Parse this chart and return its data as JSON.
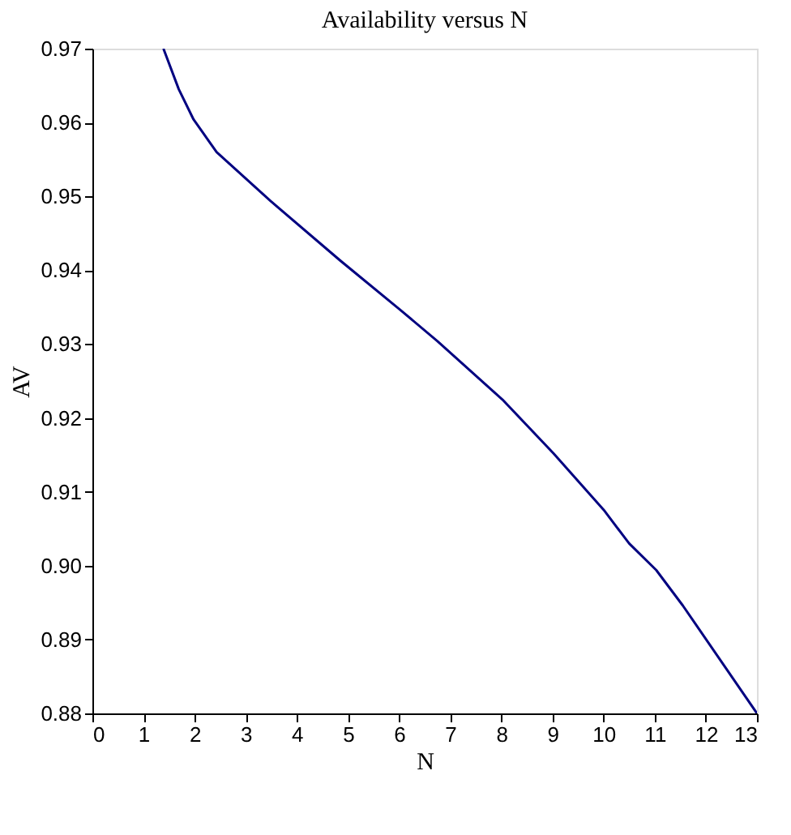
{
  "chart_data": {
    "type": "line",
    "title": "Availability  versus N",
    "xlabel": "N",
    "ylabel": "AV",
    "x": [
      1.39,
      1.69,
      1.98,
      2.43,
      3.48,
      4.85,
      6.01,
      6.75,
      8.02,
      9.02,
      10.02,
      10.5,
      11.03,
      11.55,
      13
    ],
    "series": [
      {
        "color": "#000080",
        "values": [
          0.97,
          0.9645,
          0.9604,
          0.956,
          0.9494,
          0.9413,
          0.9347,
          0.9304,
          0.9225,
          0.9152,
          0.9074,
          0.903,
          0.8994,
          0.8946,
          0.88
        ]
      }
    ],
    "xlim": [
      0,
      13
    ],
    "ylim": [
      0.88,
      0.97
    ],
    "xticks": [
      0,
      1,
      2,
      3,
      4,
      5,
      6,
      7,
      8,
      9,
      10,
      11,
      12,
      13
    ],
    "yticks": [
      {
        "value": 0.88,
        "label": "0.88"
      },
      {
        "value": 0.89,
        "label": "0.89"
      },
      {
        "value": 0.9,
        "label": "0.90"
      },
      {
        "value": 0.91,
        "label": "0.91"
      },
      {
        "value": 0.92,
        "label": "0.92"
      },
      {
        "value": 0.93,
        "label": "0.93"
      },
      {
        "value": 0.94,
        "label": "0.94"
      },
      {
        "value": 0.95,
        "label": "0.95"
      },
      {
        "value": 0.96,
        "label": "0.96"
      },
      {
        "value": 0.97,
        "label": "0.97"
      }
    ],
    "grid": false,
    "legend": false,
    "marker": "none",
    "line_style": "solid"
  }
}
